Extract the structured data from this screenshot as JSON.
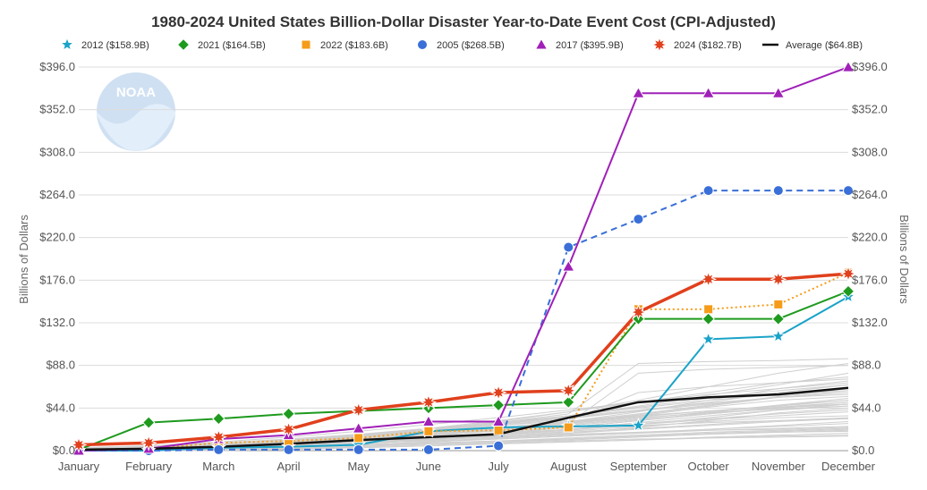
{
  "chart_data": {
    "type": "line",
    "title": "1980-2024 United States Billion-Dollar Disaster Year-to-Date Event Cost (CPI-Adjusted)",
    "xlabel": "",
    "ylabel": "Billions of Dollars",
    "ylabel_right": "Billions of Dollars",
    "categories": [
      "January",
      "February",
      "March",
      "April",
      "May",
      "June",
      "July",
      "August",
      "September",
      "October",
      "November",
      "December"
    ],
    "ylim": [
      0,
      396
    ],
    "yticks": [
      0,
      44,
      88,
      132,
      176,
      220,
      264,
      308,
      352,
      396
    ],
    "ytick_labels": [
      "$0.0",
      "$44.0",
      "$88.0",
      "$132.0",
      "$176.0",
      "$220.0",
      "$264.0",
      "$308.0",
      "$352.0",
      "$396.0"
    ],
    "legend_position": "top",
    "watermark": "NOAA",
    "series": [
      {
        "name": "2012",
        "legend": "2012 ($158.9B)",
        "color": "#1aa3c8",
        "marker": "star",
        "dash": "solid",
        "width": 2,
        "values": [
          0,
          0,
          3,
          4,
          6,
          20,
          24,
          25,
          26,
          115,
          118,
          158.9
        ]
      },
      {
        "name": "2021",
        "legend": "2021 ($164.5B)",
        "color": "#1e9a1e",
        "marker": "diamond",
        "dash": "solid",
        "width": 2,
        "values": [
          1,
          29,
          33,
          38,
          41,
          44,
          47,
          50,
          136,
          136,
          136,
          164.5
        ]
      },
      {
        "name": "2022",
        "legend": "2022 ($183.6B)",
        "color": "#f59c1a",
        "marker": "square",
        "dash": "dotted",
        "width": 2,
        "values": [
          1,
          2,
          8,
          10,
          13,
          20,
          21,
          24,
          146,
          146,
          151,
          183.6
        ]
      },
      {
        "name": "2005",
        "legend": "2005 ($268.5B)",
        "color": "#3a6fd8",
        "marker": "circle",
        "dash": "dashed",
        "width": 2,
        "values": [
          0,
          0,
          1,
          1,
          1,
          1,
          5,
          210,
          239,
          268.5,
          268.5,
          268.5
        ]
      },
      {
        "name": "2017",
        "legend": "2017 ($395.9B)",
        "color": "#a020b8",
        "marker": "triangle",
        "dash": "solid",
        "width": 2,
        "values": [
          0,
          2,
          12,
          16,
          23,
          30,
          30,
          190,
          369,
          369,
          369,
          395.9
        ]
      },
      {
        "name": "2024",
        "legend": "2024 ($182.7B)",
        "color": "#e0401c",
        "marker": "burst",
        "dash": "solid",
        "width": 3.5,
        "values": [
          6,
          8,
          14,
          22,
          42,
          50,
          60,
          62,
          143,
          177,
          177,
          182.7
        ]
      },
      {
        "name": "Average",
        "legend": "Average ($64.8B)",
        "color": "#111111",
        "marker": "none",
        "dash": "solid",
        "width": 2.5,
        "values": [
          1,
          2,
          4,
          7,
          11,
          14,
          17,
          34,
          50,
          55,
          58,
          64.8
        ]
      }
    ],
    "background_years": [
      [
        0,
        0,
        0,
        1,
        3,
        5,
        7,
        9,
        11,
        14,
        16,
        18
      ],
      [
        1,
        2,
        3,
        5,
        8,
        10,
        12,
        15,
        18,
        21,
        23,
        25
      ],
      [
        0,
        1,
        2,
        4,
        6,
        8,
        10,
        12,
        15,
        17,
        19,
        21
      ],
      [
        0,
        0,
        1,
        2,
        4,
        6,
        8,
        10,
        12,
        13,
        14,
        15
      ],
      [
        1,
        2,
        4,
        7,
        10,
        14,
        18,
        22,
        26,
        29,
        31,
        33
      ],
      [
        0,
        1,
        3,
        5,
        9,
        13,
        17,
        22,
        27,
        32,
        36,
        40
      ],
      [
        2,
        3,
        5,
        8,
        12,
        16,
        20,
        24,
        28,
        33,
        38,
        42
      ],
      [
        0,
        2,
        4,
        6,
        9,
        12,
        14,
        17,
        19,
        21,
        22,
        24
      ],
      [
        1,
        3,
        5,
        9,
        14,
        19,
        24,
        30,
        36,
        41,
        45,
        48
      ],
      [
        0,
        1,
        2,
        3,
        5,
        7,
        9,
        12,
        15,
        18,
        20,
        22
      ],
      [
        3,
        5,
        8,
        12,
        17,
        23,
        29,
        36,
        44,
        52,
        58,
        62
      ],
      [
        0,
        0,
        2,
        5,
        9,
        13,
        18,
        24,
        31,
        38,
        44,
        50
      ],
      [
        1,
        2,
        4,
        6,
        8,
        10,
        13,
        16,
        19,
        22,
        25,
        28
      ],
      [
        2,
        4,
        7,
        11,
        16,
        21,
        26,
        31,
        60,
        66,
        70,
        74
      ],
      [
        0,
        1,
        3,
        6,
        11,
        16,
        22,
        28,
        80,
        84,
        86,
        88
      ],
      [
        1,
        2,
        5,
        9,
        15,
        22,
        29,
        38,
        90,
        92,
        93,
        95
      ],
      [
        0,
        1,
        2,
        4,
        7,
        11,
        15,
        20,
        25,
        30,
        34,
        36
      ],
      [
        2,
        4,
        6,
        9,
        13,
        18,
        23,
        29,
        35,
        41,
        46,
        52
      ],
      [
        1,
        3,
        6,
        10,
        15,
        21,
        27,
        34,
        41,
        48,
        55,
        58
      ],
      [
        0,
        1,
        3,
        6,
        10,
        15,
        21,
        28,
        36,
        45,
        52,
        56
      ],
      [
        0,
        2,
        4,
        7,
        11,
        16,
        22,
        30,
        40,
        52,
        64,
        72
      ],
      [
        1,
        2,
        4,
        6,
        9,
        13,
        18,
        24,
        31,
        38,
        45,
        50
      ],
      [
        0,
        0,
        1,
        2,
        3,
        5,
        7,
        9,
        11,
        13,
        15,
        16
      ],
      [
        2,
        3,
        5,
        8,
        12,
        17,
        22,
        28,
        34,
        39,
        43,
        46
      ],
      [
        1,
        3,
        6,
        10,
        15,
        21,
        28,
        36,
        45,
        54,
        62,
        68
      ],
      [
        0,
        1,
        2,
        3,
        5,
        7,
        9,
        11,
        14,
        17,
        19,
        20
      ],
      [
        1,
        2,
        3,
        5,
        8,
        11,
        14,
        18,
        22,
        26,
        30,
        33
      ],
      [
        0,
        1,
        2,
        4,
        6,
        9,
        12,
        15,
        18,
        22,
        26,
        30
      ],
      [
        2,
        5,
        9,
        14,
        20,
        27,
        34,
        42,
        50,
        58,
        64,
        70
      ],
      [
        0,
        1,
        3,
        5,
        8,
        11,
        15,
        19,
        23,
        27,
        31,
        34
      ],
      [
        1,
        2,
        3,
        4,
        6,
        8,
        10,
        13,
        16,
        19,
        21,
        23
      ],
      [
        0,
        2,
        5,
        9,
        14,
        20,
        27,
        36,
        46,
        57,
        68,
        80
      ],
      [
        1,
        3,
        5,
        8,
        12,
        17,
        23,
        30,
        38,
        47,
        56,
        64
      ],
      [
        0,
        1,
        2,
        4,
        7,
        11,
        16,
        22,
        29,
        36,
        42,
        46
      ],
      [
        2,
        4,
        7,
        11,
        16,
        22,
        28,
        35,
        42,
        49,
        55,
        60
      ],
      [
        0,
        1,
        3,
        6,
        10,
        15,
        21,
        26,
        32,
        38,
        44,
        48
      ],
      [
        1,
        2,
        4,
        7,
        11,
        16,
        22,
        29,
        37,
        46,
        55,
        62
      ],
      [
        0,
        2,
        4,
        7,
        11,
        16,
        21,
        27,
        33,
        40,
        47,
        54
      ],
      [
        1,
        3,
        6,
        10,
        15,
        20,
        26,
        33,
        41,
        50,
        60,
        68
      ],
      [
        0,
        1,
        2,
        4,
        6,
        9,
        13,
        18,
        24,
        31,
        39,
        44
      ],
      [
        2,
        4,
        7,
        11,
        16,
        22,
        30,
        40,
        52,
        66,
        80,
        90
      ],
      [
        1,
        2,
        4,
        6,
        9,
        13,
        18,
        24,
        31,
        39,
        47,
        52
      ],
      [
        0,
        1,
        3,
        5,
        8,
        12,
        16,
        21,
        27,
        34,
        42,
        48
      ],
      [
        1,
        3,
        6,
        10,
        16,
        23,
        31,
        40,
        50,
        60,
        70,
        76
      ]
    ]
  }
}
